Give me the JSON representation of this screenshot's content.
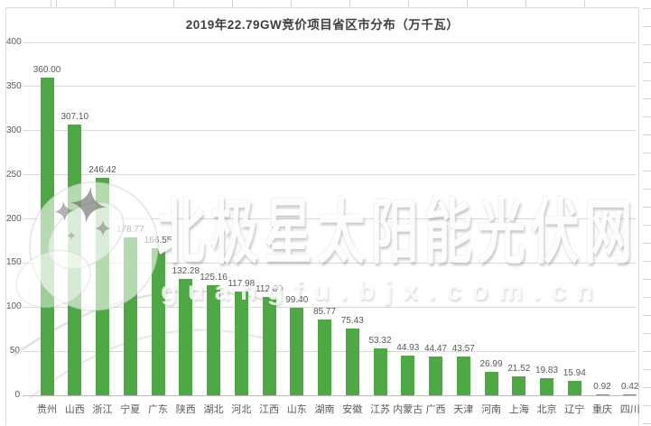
{
  "chart_data": {
    "type": "bar",
    "title": "2019年22.79GW竞价项目省区市分布（万千瓦）",
    "categories": [
      "贵州",
      "山西",
      "浙江",
      "宁夏",
      "广东",
      "陕西",
      "湖北",
      "河北",
      "江西",
      "山东",
      "湖南",
      "安徽",
      "江苏",
      "内蒙古",
      "广西",
      "天津",
      "河南",
      "上海",
      "北京",
      "辽宁",
      "重庆",
      "四川"
    ],
    "values": [
      360.0,
      307.1,
      246.42,
      178.77,
      166.55,
      132.28,
      125.16,
      117.98,
      112.0,
      99.4,
      85.77,
      75.43,
      53.32,
      44.93,
      44.47,
      43.57,
      26.99,
      21.52,
      19.83,
      15.94,
      0.92,
      0.42
    ],
    "value_labels": [
      "360.00",
      "307.10",
      "246.42",
      "178.77",
      "166.55",
      "132.28",
      "125.16",
      "117.98",
      "112.00",
      "99.40",
      "85.77",
      "75.43",
      "53.32",
      "44.93",
      "44.47",
      "43.57",
      "26.99",
      "21.52",
      "19.83",
      "15.94",
      "0.92",
      "0.42"
    ],
    "xlabel": "",
    "ylabel": "",
    "ylim": [
      0,
      400
    ],
    "yticks": [
      0,
      50,
      100,
      150,
      200,
      250,
      300,
      350,
      400
    ],
    "grid": true,
    "legend": "none",
    "bar_color": "#4EA843",
    "label_color": "#595959",
    "gridline_color": "#DADADA",
    "axis_line_color": "#BFBFBF",
    "title_color": "#3F3F3F"
  },
  "watermark": {
    "text": "北极星太阳能光伏网",
    "url": "guangfu.bjx.com.cn",
    "logo": "bjx-polar-star-bird-logo"
  }
}
